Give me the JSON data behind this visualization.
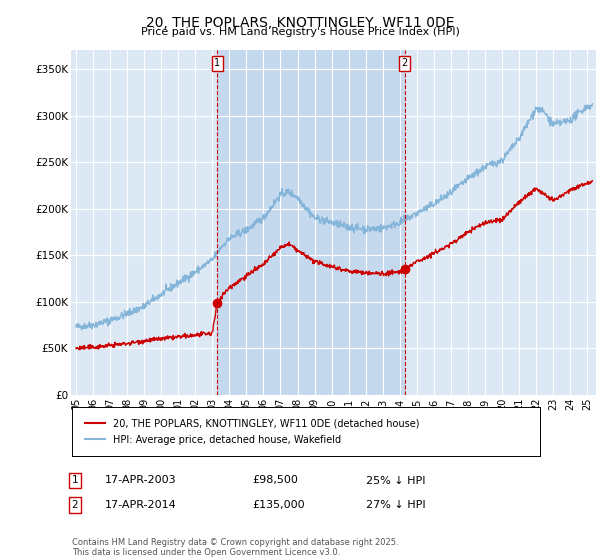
{
  "title": "20, THE POPLARS, KNOTTINGLEY, WF11 0DE",
  "subtitle": "Price paid vs. HM Land Registry's House Price Index (HPI)",
  "ylabel_ticks": [
    "£0",
    "£50K",
    "£100K",
    "£150K",
    "£200K",
    "£250K",
    "£300K",
    "£350K"
  ],
  "ytick_vals": [
    0,
    50000,
    100000,
    150000,
    200000,
    250000,
    300000,
    350000
  ],
  "ylim": [
    0,
    370000
  ],
  "xlim_start": 1994.7,
  "xlim_end": 2025.5,
  "hpi_color": "#85b4d9",
  "price_color": "#cc0000",
  "vline_color": "#cc0000",
  "plot_bg": "#dce9f5",
  "highlight_bg": "#c8dcf0",
  "grid_color": "#ffffff",
  "transaction1_date": "17-APR-2003",
  "transaction1_price": "£98,500",
  "transaction1_hpi": "25% ↓ HPI",
  "transaction1_x": 2003.29,
  "transaction1_y": 98500,
  "transaction2_date": "17-APR-2014",
  "transaction2_price": "£135,000",
  "transaction2_hpi": "27% ↓ HPI",
  "transaction2_x": 2014.29,
  "transaction2_y": 135000,
  "legend_entry1": "20, THE POPLARS, KNOTTINGLEY, WF11 0DE (detached house)",
  "legend_entry2": "HPI: Average price, detached house, Wakefield",
  "footnote": "Contains HM Land Registry data © Crown copyright and database right 2025.\nThis data is licensed under the Open Government Licence v3.0.",
  "xtick_years": [
    1995,
    1996,
    1997,
    1998,
    1999,
    2000,
    2001,
    2002,
    2003,
    2004,
    2005,
    2006,
    2007,
    2008,
    2009,
    2010,
    2011,
    2012,
    2013,
    2014,
    2015,
    2016,
    2017,
    2018,
    2019,
    2020,
    2021,
    2022,
    2023,
    2024,
    2025
  ],
  "xtick_labels": [
    "95",
    "96",
    "97",
    "98",
    "99",
    "00",
    "01",
    "02",
    "03",
    "04",
    "05",
    "06",
    "07",
    "08",
    "09",
    "10",
    "11",
    "12",
    "13",
    "14",
    "15",
    "16",
    "17",
    "18",
    "19",
    "20",
    "21",
    "22",
    "23",
    "24",
    "25"
  ]
}
